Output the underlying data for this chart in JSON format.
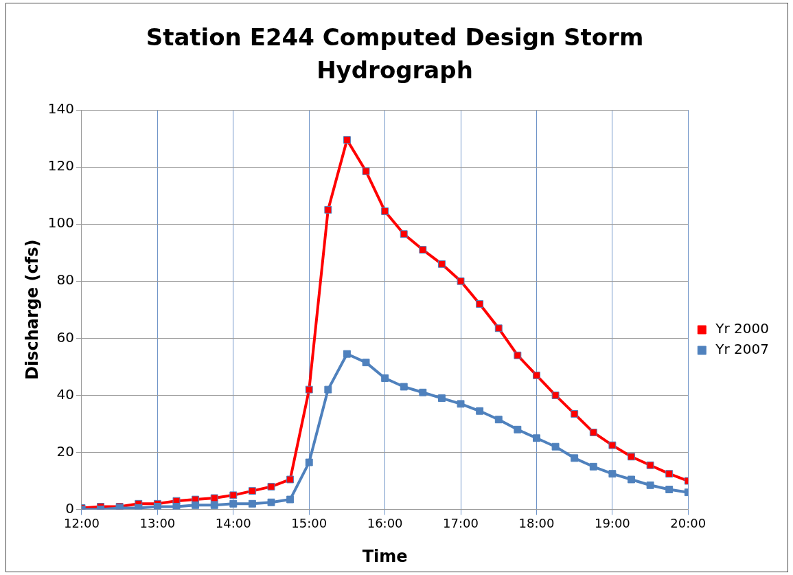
{
  "chart_data": {
    "type": "line",
    "title": "Station E244 Computed Design Storm Hydrograph",
    "xlabel": "Time",
    "ylabel": "Discharge (cfs)",
    "x": [
      12,
      12.25,
      12.5,
      12.75,
      13,
      13.25,
      13.5,
      13.75,
      14,
      14.25,
      14.5,
      14.75,
      15,
      15.25,
      15.5,
      15.75,
      16,
      16.25,
      16.5,
      16.75,
      17,
      17.25,
      17.5,
      17.75,
      18,
      18.25,
      18.5,
      18.75,
      19,
      19.25,
      19.5,
      19.75,
      20
    ],
    "series": [
      {
        "name": "Yr 2000",
        "color": "#ff0000",
        "values": [
          0.5,
          1,
          1,
          2,
          2,
          3,
          3.5,
          4,
          5,
          6.5,
          8,
          10.5,
          42,
          105,
          129.5,
          118.5,
          104.5,
          96.5,
          91,
          86,
          80,
          72,
          63.5,
          54,
          47,
          40,
          33.5,
          27,
          22.5,
          18.5,
          15.5,
          12.5,
          10
        ]
      },
      {
        "name": "Yr 2007",
        "color": "#4f81bd",
        "values": [
          0,
          0,
          0.5,
          0.5,
          1,
          1,
          1.5,
          1.5,
          2,
          2,
          2.5,
          3.5,
          16.5,
          42,
          54.5,
          51.5,
          46,
          43,
          41,
          39,
          37,
          34.5,
          31.5,
          28,
          25,
          22,
          18,
          15,
          12.5,
          10.5,
          8.5,
          7,
          6
        ]
      }
    ],
    "xlim": [
      12,
      20
    ],
    "xticks": [
      {
        "value": 12,
        "label": "12:00"
      },
      {
        "value": 13,
        "label": "13:00"
      },
      {
        "value": 14,
        "label": "14:00"
      },
      {
        "value": 15,
        "label": "15:00"
      },
      {
        "value": 16,
        "label": "16:00"
      },
      {
        "value": 17,
        "label": "17:00"
      },
      {
        "value": 18,
        "label": "18:00"
      },
      {
        "value": 19,
        "label": "19:00"
      },
      {
        "value": 20,
        "label": "20:00"
      }
    ],
    "ylim": [
      0,
      140
    ],
    "yticks": [
      0,
      20,
      40,
      60,
      80,
      100,
      120,
      140
    ],
    "grid": true,
    "legend": "right",
    "marker": "square",
    "line_style": "solid"
  }
}
